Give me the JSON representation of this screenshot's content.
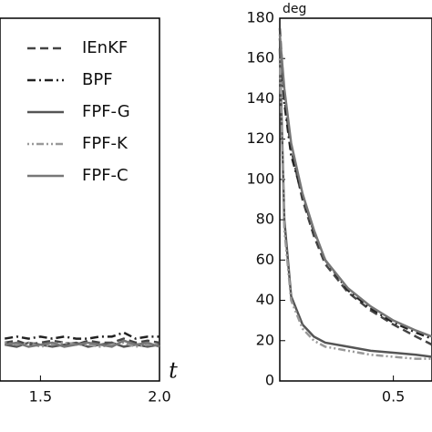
{
  "chart_data": [
    {
      "type": "line",
      "x_label": "t",
      "xlim": [
        1.33,
        2.0
      ],
      "ylim": [
        0,
        180
      ],
      "xticks": [
        1.5,
        {
          "value": 2,
          "label": "2.0"
        }
      ],
      "legend": "upper right",
      "x": [
        1.35,
        1.4,
        1.45,
        1.5,
        1.55,
        1.6,
        1.65,
        1.7,
        1.75,
        1.8,
        1.85,
        1.9,
        1.95,
        2.0
      ],
      "series": [
        {
          "name": "IEnKF",
          "color": "#444444",
          "dash": "dashed",
          "values": [
            19,
            20,
            18,
            19,
            20,
            19,
            18,
            20,
            19,
            19,
            21,
            19,
            20,
            19
          ]
        },
        {
          "name": "BPF",
          "color": "#222222",
          "dash": "dashdot",
          "values": [
            21,
            22,
            21,
            22,
            21,
            22,
            21,
            21,
            22,
            22,
            24,
            21,
            22,
            22
          ]
        },
        {
          "name": "FPF-G",
          "color": "#555555",
          "dash": "solid",
          "values": [
            18,
            17,
            19,
            18,
            17,
            18,
            19,
            17,
            18,
            19,
            17,
            18,
            17,
            18
          ]
        },
        {
          "name": "FPF-K",
          "color": "#999999",
          "dash": "dotdash",
          "values": [
            19,
            18,
            19,
            17,
            18,
            19,
            18,
            18,
            17,
            18,
            19,
            17,
            18,
            18
          ]
        },
        {
          "name": "FPF-C",
          "color": "#777777",
          "dash": "solid",
          "values": [
            18,
            19,
            17,
            18,
            19,
            17,
            18,
            19,
            18,
            17,
            20,
            18,
            19,
            17
          ]
        }
      ]
    },
    {
      "type": "line",
      "y_label": "deg",
      "xlim": [
        0,
        0.67
      ],
      "ylim": [
        0,
        180
      ],
      "xticks": [
        0.5
      ],
      "yticks": [
        0,
        20,
        40,
        60,
        80,
        100,
        120,
        140,
        160,
        180
      ],
      "x": [
        0,
        0.02,
        0.05,
        0.1,
        0.15,
        0.2,
        0.3,
        0.4,
        0.5,
        0.6,
        0.67
      ],
      "series": [
        {
          "name": "IEnKF",
          "color": "#444444",
          "dash": "dashed",
          "values": [
            175,
            140,
            115,
            90,
            72,
            58,
            44,
            35,
            28,
            22,
            18
          ]
        },
        {
          "name": "BPF",
          "color": "#222222",
          "dash": "dashdot",
          "values": [
            170,
            138,
            112,
            92,
            74,
            60,
            45,
            36,
            29,
            24,
            21
          ]
        },
        {
          "name": "FPF-G",
          "color": "#555555",
          "dash": "solid",
          "values": [
            165,
            80,
            42,
            28,
            22,
            19,
            17,
            15,
            14,
            13,
            12
          ]
        },
        {
          "name": "FPF-K",
          "color": "#999999",
          "dash": "dotdash",
          "values": [
            160,
            75,
            40,
            26,
            20,
            17,
            15,
            13,
            12,
            11,
            11
          ]
        },
        {
          "name": "FPF-C",
          "color": "#777777",
          "dash": "solid",
          "values": [
            172,
            145,
            118,
            93,
            75,
            60,
            46,
            37,
            30,
            25,
            22
          ]
        }
      ]
    }
  ]
}
